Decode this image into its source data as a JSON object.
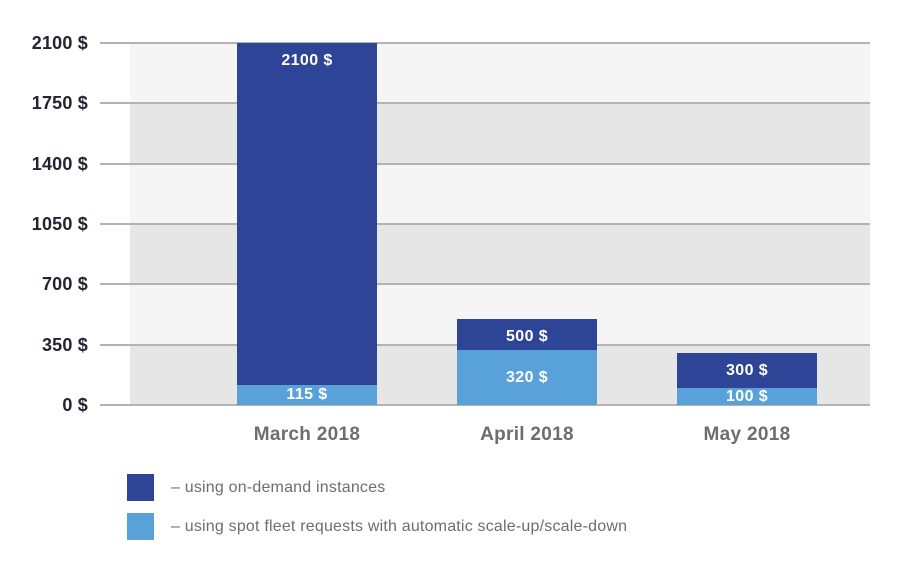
{
  "page": {
    "background": "#ffffff"
  },
  "chart_data": {
    "type": "bar",
    "title": "",
    "unit": "$",
    "categories": [
      "March 2018",
      "April 2018",
      "May 2018"
    ],
    "series": [
      {
        "name": "on-demand-instances",
        "legend_label": "– using on-demand instances",
        "color": "#2e4496",
        "values": [
          2100,
          500,
          300
        ],
        "value_labels": [
          "2100 $",
          "500 $",
          "300 $"
        ]
      },
      {
        "name": "spot-fleet-requests",
        "legend_label": "– using spot fleet requests with automatic scale-up/scale-down",
        "color": "#58a2d9",
        "values": [
          115,
          320,
          100
        ],
        "value_labels": [
          "115 $",
          "320 $",
          "100 $"
        ]
      }
    ],
    "ylim": [
      0,
      2100
    ],
    "ytick_values": [
      2100,
      1750,
      1400,
      1050,
      700,
      350,
      0
    ],
    "ytick_labels": [
      "2100 $",
      "1750 $",
      "1400 $",
      "1050 $",
      "700 $",
      "350 $",
      "0 $"
    ],
    "bar_rendering": "overlapped-front-series-is-spot",
    "grid": true,
    "legend_position": "bottom-left",
    "colors": {
      "band_light": "#f5f5f5",
      "band_dark": "#e6e6e6",
      "gridline": "#b3b3b3",
      "ytick_text": "#20252f",
      "xtick_text": "#6d6d72",
      "legend_text": "#6d6d72",
      "bar_label_text": "#ffffff"
    }
  }
}
